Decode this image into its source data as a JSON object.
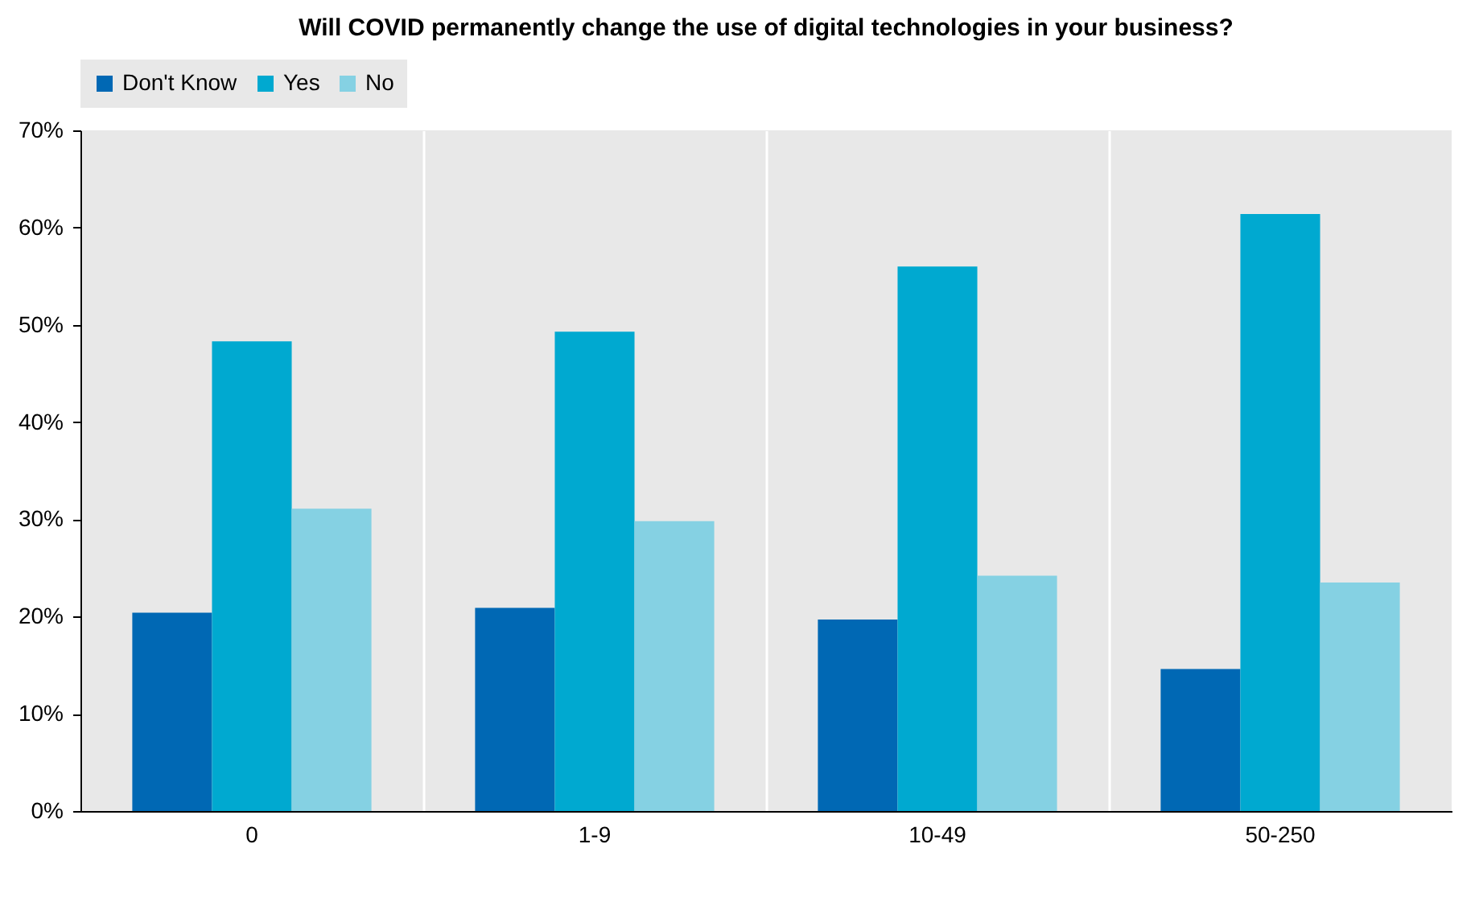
{
  "chart_data": {
    "type": "bar",
    "title": "Will COVID permanently change the use of digital technologies in your business?",
    "categories": [
      "0",
      "1-9",
      "10-49",
      "50-250"
    ],
    "series": [
      {
        "name": "Don't Know",
        "color": "#0068b4",
        "values": [
          20.4,
          20.9,
          19.7,
          14.6
        ]
      },
      {
        "name": "Yes",
        "color": "#00a9d0",
        "values": [
          48.3,
          49.3,
          56.0,
          61.4
        ]
      },
      {
        "name": "No",
        "color": "#85d1e3",
        "values": [
          31.1,
          29.8,
          24.2,
          23.5
        ]
      }
    ],
    "ylim": [
      0,
      70
    ],
    "yticks": [
      {
        "value": 0,
        "label": "0%"
      },
      {
        "value": 10,
        "label": "10%"
      },
      {
        "value": 20,
        "label": "20%"
      },
      {
        "value": 30,
        "label": "30%"
      },
      {
        "value": 40,
        "label": "40%"
      },
      {
        "value": 50,
        "label": "50%"
      },
      {
        "value": 60,
        "label": "60%"
      },
      {
        "value": 70,
        "label": "70%"
      }
    ],
    "grid": "x",
    "legend": "top"
  }
}
